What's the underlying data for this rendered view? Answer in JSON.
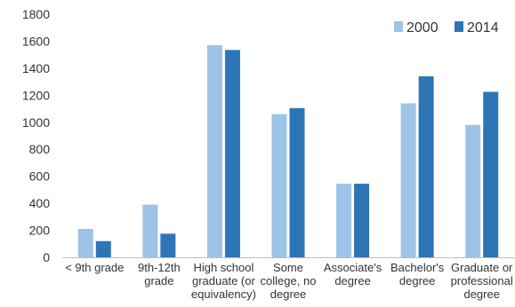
{
  "chart_data": {
    "type": "bar",
    "title": "",
    "xlabel": "",
    "ylabel": "",
    "ylim": [
      0,
      1800
    ],
    "yticks": [
      0,
      200,
      400,
      600,
      800,
      1000,
      1200,
      1400,
      1600,
      1800
    ],
    "grid": false,
    "legend_position": "top-right",
    "categories": [
      [
        "< 9th grade"
      ],
      [
        "9th-12th",
        "grade"
      ],
      [
        "High school",
        "graduate (or",
        "equivalency)"
      ],
      [
        "Some",
        "college, no",
        "degree"
      ],
      [
        "Associate's",
        "degree"
      ],
      [
        "Bachelor's",
        "degree"
      ],
      [
        "Graduate or",
        "professional",
        "degree"
      ]
    ],
    "series": [
      {
        "name": "2000",
        "color": "#9dc3e6",
        "values": [
          210,
          390,
          1570,
          1060,
          545,
          1140,
          980
        ]
      },
      {
        "name": "2014",
        "color": "#2e75b6",
        "values": [
          120,
          175,
          1535,
          1105,
          545,
          1340,
          1225
        ]
      }
    ]
  }
}
